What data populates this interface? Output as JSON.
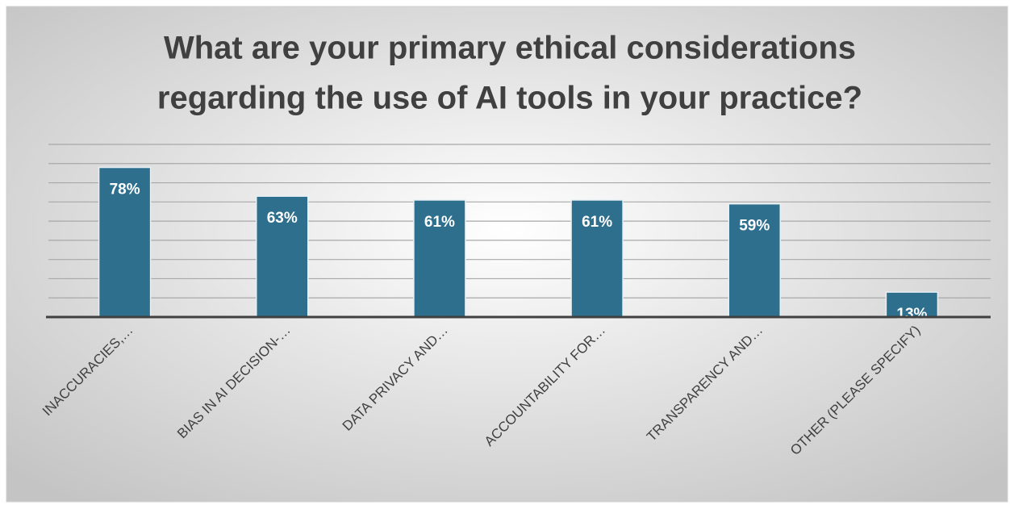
{
  "chart_data": {
    "type": "bar",
    "title": [
      "What are your primary ethical considerations",
      "regarding the use of AI tools in your practice?"
    ],
    "categories": [
      "INACCURACIES,…",
      "BIAS IN AI DECISION-…",
      "DATA PRIVACY AND…",
      "ACCOUNTABILITY FOR…",
      "TRANSPARENCY AND…",
      "OTHER (PLEASE SPECIFY)"
    ],
    "values": [
      78,
      63,
      61,
      61,
      59,
      13
    ],
    "value_labels": [
      "78%",
      "63%",
      "61%",
      "61%",
      "59%",
      "13%"
    ],
    "color": "#2e6f8e",
    "ylim": [
      0,
      90
    ],
    "yticks": [
      0,
      10,
      20,
      30,
      40,
      50,
      60,
      70,
      80,
      90
    ],
    "grid": true
  }
}
